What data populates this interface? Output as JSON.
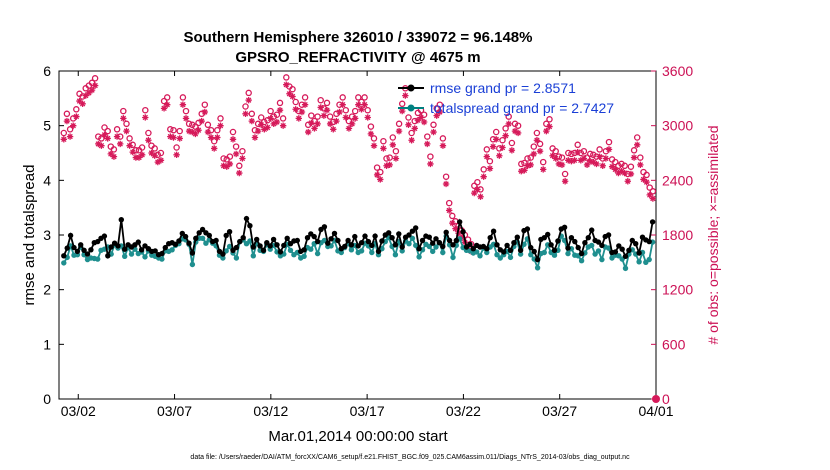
{
  "chart_data": {
    "type": "line",
    "title_line1": "Southern Hemisphere 326010 / 339072 = 96.148%",
    "title_line2": "GPSRO_REFRACTIVITY @ 4675 m",
    "xlabel": "Mar.01,2014 00:00:00 start",
    "ylabel_left": "rmse and totalspread",
    "ylabel_right": "# of obs: o=possible; ×=assimilated",
    "footnote": "data file: /Users/raeder/DAI/ATM_forcXX/CAM6_setup/f.e21.FHIST_BGC.f09_025.CAM6assim.011/Diags_NTrS_2014-03/obs_diag_output.nc",
    "x_range_days": [
      0,
      31
    ],
    "x_ticks": [
      {
        "day": 1,
        "label": "03/02"
      },
      {
        "day": 6,
        "label": "03/07"
      },
      {
        "day": 11,
        "label": "03/12"
      },
      {
        "day": 16,
        "label": "03/17"
      },
      {
        "day": 21,
        "label": "03/22"
      },
      {
        "day": 26,
        "label": "03/27"
      },
      {
        "day": 31,
        "label": "04/01"
      }
    ],
    "y_left_range": [
      0,
      6
    ],
    "y_left_ticks": [
      "0",
      "1",
      "2",
      "3",
      "4",
      "5",
      "6"
    ],
    "y_right_range": [
      0,
      3600
    ],
    "y_right_ticks": [
      "0",
      "600",
      "1200",
      "1800",
      "2400",
      "3000",
      "3600"
    ],
    "legend": {
      "position": "top-right",
      "entries": [
        {
          "label": "rmse grand pr = 2.8571",
          "color": "#000000"
        },
        {
          "label": "totalspread grand pr = 2.7427",
          "color": "#008080"
        }
      ]
    },
    "colors": {
      "rmse": "#000000",
      "totalspread": "#1f8f8f",
      "obs": "#d61a5a",
      "right_axis": "#cc1155",
      "legend_text": "#1a3fd6"
    },
    "series": [
      {
        "name": "rmse",
        "axis": "left",
        "values": [
          2.62,
          2.76,
          2.99,
          2.77,
          2.7,
          2.82,
          2.72,
          2.65,
          2.73,
          2.86,
          2.88,
          2.94,
          2.98,
          2.62,
          2.78,
          2.85,
          2.8,
          3.28,
          2.74,
          2.82,
          2.78,
          2.82,
          2.87,
          2.73,
          2.8,
          2.75,
          2.7,
          2.71,
          2.64,
          2.66,
          2.77,
          2.84,
          2.86,
          2.83,
          2.89,
          3.03,
          2.97,
          2.85,
          2.67,
          2.94,
          3.04,
          3.1,
          3.04,
          2.99,
          2.88,
          2.9,
          2.7,
          2.65,
          2.99,
          3.06,
          2.72,
          2.77,
          2.88,
          2.95,
          3.3,
          3.17,
          2.78,
          2.92,
          2.8,
          2.72,
          2.86,
          2.8,
          2.92,
          2.82,
          2.69,
          2.81,
          2.94,
          2.84,
          2.89,
          2.9,
          2.7,
          2.73,
          2.95,
          3.02,
          2.97,
          2.88,
          3.1,
          3.15,
          2.85,
          2.93,
          3.03,
          2.9,
          2.75,
          2.79,
          2.9,
          2.82,
          2.97,
          2.8,
          2.86,
          2.98,
          2.88,
          2.81,
          2.98,
          2.7,
          2.89,
          3.0,
          3.04,
          2.95,
          2.82,
          3.02,
          2.78,
          2.96,
          3.0,
          3.07,
          3.13,
          2.75,
          2.9,
          2.98,
          2.96,
          2.85,
          2.93,
          2.86,
          2.79,
          3.05,
          2.9,
          2.82,
          2.9,
          3.24,
          3.06,
          2.78,
          2.83,
          2.75,
          2.81,
          2.78,
          2.79,
          2.75,
          2.95,
          3.07,
          2.82,
          2.73,
          2.69,
          2.81,
          2.72,
          2.86,
          2.96,
          2.72,
          3.08,
          3.11,
          2.77,
          2.7,
          2.55,
          2.92,
          2.95,
          3.01,
          2.82,
          2.72,
          2.89,
          3.11,
          3.14,
          2.76,
          2.95,
          2.88,
          2.77,
          2.66,
          2.86,
          2.95,
          3.09,
          2.9,
          2.87,
          2.81,
          2.97,
          3.0,
          2.68,
          2.69,
          2.8,
          2.74,
          2.61,
          2.72,
          2.9,
          2.84,
          2.67,
          2.96,
          2.91,
          2.88,
          3.24
        ]
      },
      {
        "name": "totalspread",
        "axis": "left",
        "values": [
          2.49,
          2.59,
          2.8,
          2.63,
          2.64,
          2.78,
          2.64,
          2.55,
          2.58,
          2.57,
          2.56,
          2.72,
          2.74,
          2.78,
          2.65,
          2.82,
          2.76,
          2.8,
          2.61,
          2.77,
          2.65,
          2.74,
          2.66,
          2.69,
          2.6,
          2.71,
          2.63,
          2.61,
          2.58,
          2.56,
          2.71,
          2.7,
          2.73,
          2.81,
          2.84,
          2.93,
          2.91,
          2.83,
          2.46,
          2.87,
          2.94,
          2.94,
          2.85,
          2.91,
          2.85,
          2.8,
          2.63,
          2.58,
          2.71,
          2.79,
          2.67,
          2.58,
          2.88,
          2.91,
          2.84,
          2.89,
          2.62,
          2.85,
          2.72,
          2.7,
          2.82,
          2.74,
          2.81,
          2.69,
          2.62,
          2.65,
          2.83,
          2.72,
          2.64,
          2.68,
          2.58,
          2.61,
          2.77,
          2.74,
          2.84,
          2.66,
          2.86,
          2.9,
          2.79,
          2.8,
          2.9,
          2.71,
          2.68,
          2.77,
          2.84,
          2.73,
          2.81,
          2.68,
          2.71,
          2.85,
          2.8,
          2.68,
          2.84,
          2.64,
          2.75,
          2.88,
          2.95,
          2.79,
          2.64,
          2.88,
          2.71,
          2.89,
          2.84,
          2.94,
          2.81,
          2.6,
          2.73,
          2.83,
          2.79,
          2.7,
          2.78,
          2.86,
          2.68,
          2.98,
          2.82,
          2.59,
          2.81,
          2.93,
          2.77,
          2.72,
          2.71,
          2.67,
          2.69,
          2.62,
          2.76,
          2.68,
          2.78,
          2.83,
          2.64,
          2.58,
          2.64,
          2.7,
          2.59,
          2.79,
          2.87,
          2.65,
          2.83,
          2.93,
          2.64,
          2.56,
          2.4,
          2.66,
          2.68,
          2.82,
          2.68,
          2.63,
          2.72,
          2.98,
          2.9,
          2.66,
          2.75,
          2.63,
          2.62,
          2.53,
          2.67,
          2.78,
          2.81,
          2.65,
          2.71,
          2.55,
          2.78,
          2.76,
          2.58,
          2.63,
          2.62,
          2.56,
          2.39,
          2.65,
          2.73,
          2.65,
          2.51,
          2.68,
          2.5,
          2.55,
          2.87
        ]
      },
      {
        "name": "obs possible",
        "axis": "right",
        "marker": "o",
        "values": [
          2920,
          3130,
          2960,
          3080,
          3180,
          3350,
          3320,
          3410,
          3440,
          3470,
          3520,
          2880,
          2860,
          2980,
          2940,
          2770,
          2740,
          2960,
          2880,
          3160,
          3020,
          2860,
          2790,
          2730,
          2730,
          2760,
          3170,
          2920,
          2780,
          2750,
          2680,
          2700,
          3270,
          3310,
          2960,
          2950,
          2760,
          2940,
          3310,
          3160,
          3020,
          3010,
          2990,
          3030,
          3130,
          3230,
          3010,
          2950,
          2830,
          2950,
          3080,
          2640,
          2630,
          2660,
          2930,
          2770,
          2560,
          2720,
          3210,
          3360,
          3130,
          2950,
          3020,
          3090,
          3040,
          3060,
          3160,
          3100,
          3120,
          3250,
          3080,
          3530,
          3430,
          3400,
          3260,
          3160,
          3230,
          3310,
          3010,
          3110,
          3050,
          3100,
          3280,
          3190,
          3250,
          3100,
          3040,
          3130,
          3230,
          3310,
          3170,
          3050,
          3100,
          3160,
          3310,
          3260,
          3310,
          3170,
          2990,
          2860,
          2540,
          2490,
          2830,
          2640,
          2650,
          2870,
          2720,
          3020,
          3240,
          3410,
          3090,
          2920,
          3050,
          3140,
          3170,
          3120,
          2880,
          2660,
          3010,
          3190,
          3230,
          2860,
          2440,
          2150,
          2010,
          1950,
          1900,
          1850,
          1800,
          1750,
          1700,
          2340,
          2380,
          2300,
          2520,
          2740,
          2610,
          2850,
          2930,
          2750,
          2840,
          2970,
          3100,
          2810,
          3020,
          3000,
          2580,
          2590,
          2640,
          2650,
          2770,
          2920,
          2800,
          2600,
          3020,
          3070,
          2750,
          2720,
          2660,
          2650,
          2470,
          2700,
          2690,
          2700,
          2790,
          2700,
          2720,
          2650,
          2690,
          2680,
          2660,
          2740,
          2640,
          2720,
          2820,
          2630,
          2600,
          2560,
          2580,
          2560,
          2470,
          2550,
          2730,
          2870,
          2650,
          2490,
          2460,
          2320,
          2280
        ]
      },
      {
        "name": "obs assimilated",
        "axis": "right",
        "marker": "x",
        "values": [
          2850,
          3050,
          2880,
          3000,
          3100,
          3270,
          3240,
          3330,
          3360,
          3390,
          3440,
          2800,
          2780,
          2900,
          2860,
          2690,
          2660,
          2880,
          2800,
          3080,
          2940,
          2780,
          2710,
          2650,
          2650,
          2680,
          3090,
          2840,
          2700,
          2670,
          2600,
          2620,
          3190,
          3230,
          2880,
          2870,
          2680,
          2860,
          3230,
          3080,
          2940,
          2930,
          2910,
          2950,
          3050,
          3150,
          2930,
          2870,
          2750,
          2870,
          3000,
          2560,
          2550,
          2580,
          2850,
          2690,
          2480,
          2640,
          3130,
          3280,
          3050,
          2870,
          2940,
          3010,
          2960,
          2980,
          3080,
          3020,
          3040,
          3170,
          3000,
          3450,
          3350,
          3320,
          3180,
          3080,
          3150,
          3230,
          2930,
          3030,
          2970,
          3020,
          3200,
          3110,
          3170,
          3020,
          2960,
          3050,
          3150,
          3230,
          3090,
          2970,
          3020,
          3080,
          3230,
          3180,
          3230,
          3090,
          2910,
          2780,
          2460,
          2410,
          2750,
          2560,
          2570,
          2790,
          2640,
          2940,
          3160,
          3330,
          3010,
          2840,
          2970,
          3060,
          3090,
          3040,
          2800,
          2580,
          2930,
          3110,
          3150,
          2780,
          2360,
          2070,
          1930,
          1870,
          1820,
          1770,
          1720,
          1670,
          1620,
          2260,
          2300,
          2220,
          2440,
          2660,
          2530,
          2770,
          2850,
          2670,
          2760,
          2890,
          3020,
          2730,
          2940,
          2920,
          2500,
          2510,
          2560,
          2570,
          2690,
          2840,
          2720,
          2520,
          2940,
          2990,
          2670,
          2640,
          2580,
          2570,
          2390,
          2620,
          2610,
          2620,
          2710,
          2620,
          2640,
          2570,
          2610,
          2600,
          2580,
          2660,
          2560,
          2640,
          2740,
          2550,
          2520,
          2480,
          2500,
          2480,
          2390,
          2470,
          2650,
          2790,
          2570,
          2410,
          2380,
          2240,
          2200
        ]
      },
      {
        "name": "obs last point",
        "axis": "right",
        "points": [
          {
            "day": 31,
            "value": 0
          }
        ]
      }
    ]
  }
}
